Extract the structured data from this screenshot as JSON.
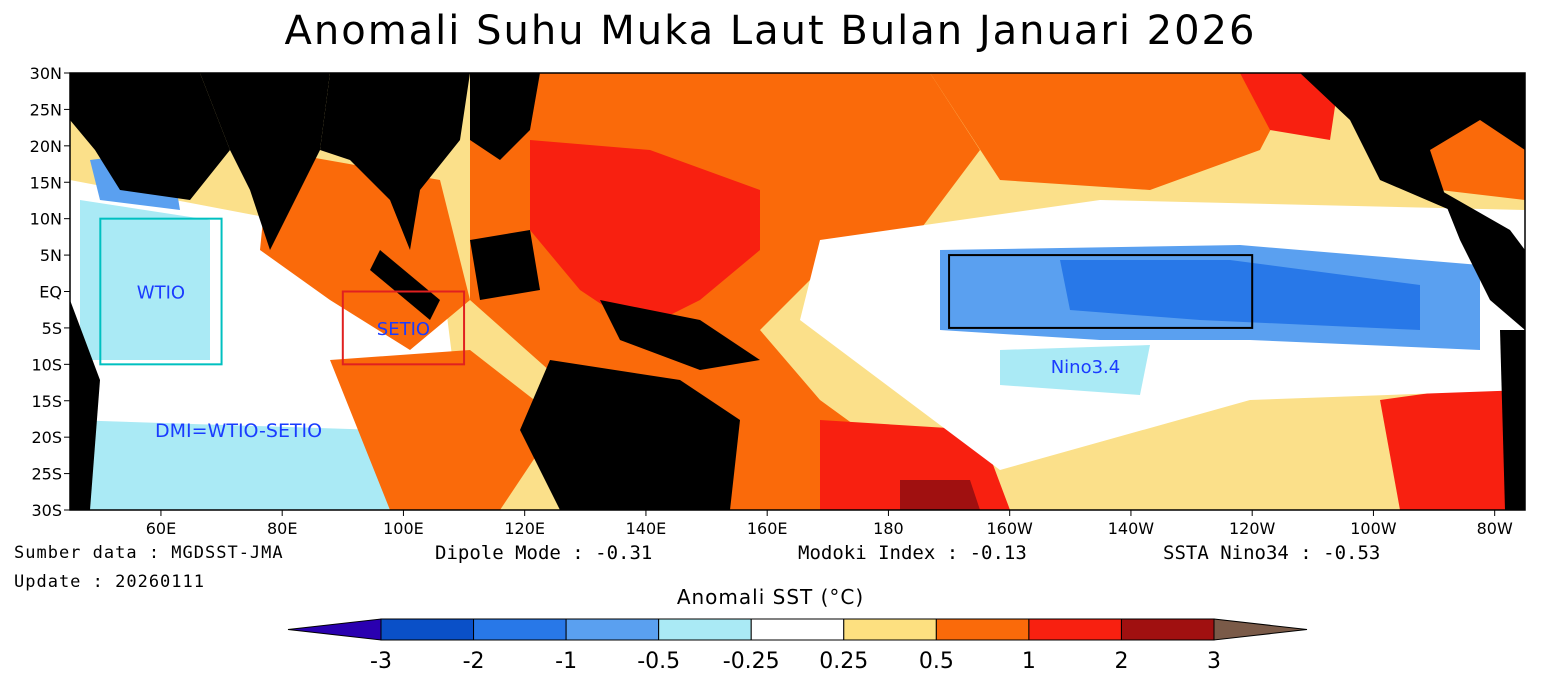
{
  "title": "Anomali Suhu Muka Laut Bulan Januari 2026",
  "map": {
    "lat_labels": [
      "30N",
      "25N",
      "20N",
      "15N",
      "10N",
      "5N",
      "EQ",
      "5S",
      "10S",
      "15S",
      "20S",
      "25S",
      "30S"
    ],
    "lon_labels": [
      "60E",
      "80E",
      "100E",
      "120E",
      "140E",
      "160E",
      "180",
      "160W",
      "140W",
      "120W",
      "100W",
      "80W"
    ],
    "regions": [
      {
        "label": "WTIO",
        "color": "#00c0c0",
        "lon": [
          50,
          70
        ],
        "lat": [
          -10,
          10
        ]
      },
      {
        "label": "SETIO",
        "color": "#e02020",
        "lon": [
          90,
          110
        ],
        "lat": [
          -10,
          0
        ]
      },
      {
        "label": "Nino3.4",
        "color": "#000000",
        "lon": [
          190,
          240
        ],
        "lat": [
          -5,
          5
        ]
      }
    ],
    "annotation": "DMI=WTIO-SETIO",
    "annotation_color": "#1a3cff"
  },
  "info": {
    "source": "Sumber data : MGDSST-JMA",
    "update": "Update : 20260111",
    "dipole": "Dipole Mode : -0.31",
    "modoki": "Modoki Index : -0.13",
    "nino34": "SSTA Nino34 : -0.53"
  },
  "colorbar": {
    "title": "Anomali SST (°C)",
    "ticks": [
      "-3",
      "-2",
      "-1",
      "-0.5",
      "-0.25",
      "0.25",
      "0.5",
      "1",
      "2",
      "3"
    ],
    "colors": [
      "#2a00b0",
      "#0a50c8",
      "#2878e8",
      "#5aa0f0",
      "#aaeaf5",
      "#ffffff",
      "#fde080",
      "#fa6a0a",
      "#f82010",
      "#a01010",
      "#7a5a48"
    ]
  }
}
